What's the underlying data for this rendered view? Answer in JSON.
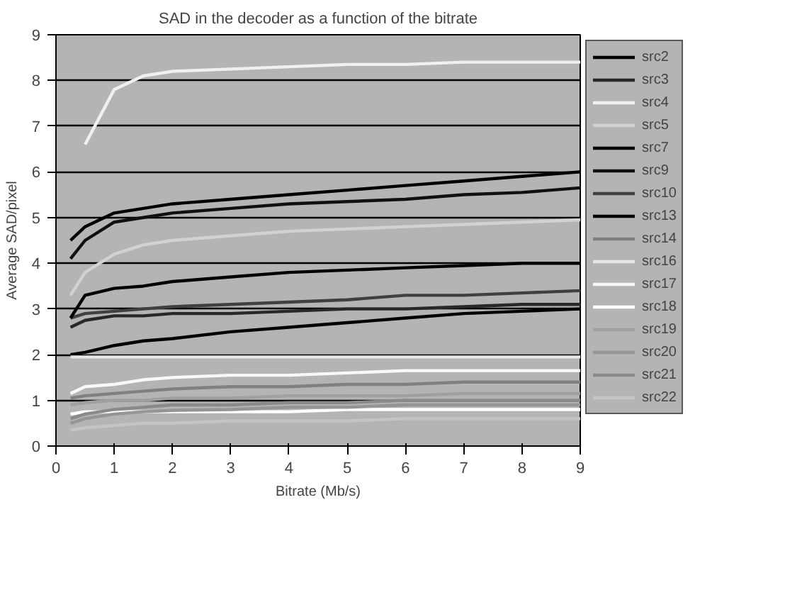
{
  "chart_data": {
    "type": "line",
    "title": "SAD in the decoder as a function of the bitrate",
    "xlabel": "Bitrate (Mb/s)",
    "ylabel": "Average SAD/pixel",
    "x": [
      0.25,
      0.5,
      1,
      1.5,
      2,
      3,
      4,
      5,
      6,
      7,
      8,
      9
    ],
    "xlim": [
      0,
      9
    ],
    "ylim": [
      0,
      9
    ],
    "xticks": [
      0,
      1,
      2,
      3,
      4,
      5,
      6,
      7,
      8,
      9
    ],
    "yticks": [
      0,
      1,
      2,
      3,
      4,
      5,
      6,
      7,
      8,
      9
    ],
    "grid": "y",
    "legend": "right",
    "series": [
      {
        "name": "src2",
        "color": "#000000",
        "values": [
          4.5,
          4.8,
          5.1,
          5.2,
          5.3,
          5.4,
          5.5,
          5.6,
          5.7,
          5.8,
          5.9,
          6.0
        ]
      },
      {
        "name": "src3",
        "color": "#282828",
        "values": [
          2.6,
          2.75,
          2.85,
          2.85,
          2.9,
          2.9,
          2.95,
          3.0,
          3.0,
          3.05,
          3.1,
          3.1
        ]
      },
      {
        "name": "src4",
        "color": "#f0f0f0",
        "values": [
          null,
          6.6,
          7.8,
          8.1,
          8.2,
          8.25,
          8.3,
          8.35,
          8.35,
          8.4,
          8.4,
          8.4
        ]
      },
      {
        "name": "src5",
        "color": "#d2d2d2",
        "values": [
          3.3,
          3.8,
          4.2,
          4.4,
          4.5,
          4.6,
          4.7,
          4.75,
          4.8,
          4.85,
          4.9,
          4.95
        ]
      },
      {
        "name": "src7",
        "color": "#000000",
        "values": [
          2.0,
          2.05,
          2.2,
          2.3,
          2.35,
          2.5,
          2.6,
          2.7,
          2.8,
          2.9,
          2.95,
          3.0
        ]
      },
      {
        "name": "src9",
        "color": "#101010",
        "values": [
          4.1,
          4.5,
          4.9,
          5.0,
          5.1,
          5.2,
          5.3,
          5.35,
          5.4,
          5.5,
          5.55,
          5.65
        ]
      },
      {
        "name": "src10",
        "color": "#404040",
        "values": [
          2.8,
          2.9,
          2.95,
          3.0,
          3.05,
          3.1,
          3.15,
          3.2,
          3.3,
          3.3,
          3.35,
          3.4
        ]
      },
      {
        "name": "src13",
        "color": "#000000",
        "values": [
          2.8,
          3.3,
          3.45,
          3.5,
          3.6,
          3.7,
          3.8,
          3.85,
          3.9,
          3.95,
          4.0,
          4.0
        ]
      },
      {
        "name": "src14",
        "color": "#808080",
        "values": [
          1.05,
          1.1,
          1.15,
          1.2,
          1.25,
          1.3,
          1.3,
          1.35,
          1.35,
          1.4,
          1.4,
          1.4
        ]
      },
      {
        "name": "src16",
        "color": "#e6e6e6",
        "values": [
          1.95,
          1.95,
          1.95,
          1.95,
          1.95,
          1.95,
          1.95,
          1.95,
          1.95,
          1.95,
          1.95,
          1.95
        ]
      },
      {
        "name": "src17",
        "color": "#f8f8f8",
        "values": [
          1.15,
          1.3,
          1.35,
          1.45,
          1.5,
          1.55,
          1.55,
          1.6,
          1.65,
          1.65,
          1.65,
          1.65
        ]
      },
      {
        "name": "src18",
        "color": "#ffffff",
        "values": [
          0.7,
          0.75,
          0.75,
          0.75,
          0.75,
          0.75,
          0.75,
          0.8,
          0.8,
          0.8,
          0.8,
          0.8
        ]
      },
      {
        "name": "src19",
        "color": "#a0a0a0",
        "values": [
          0.9,
          0.95,
          1.0,
          1.0,
          1.05,
          1.05,
          1.1,
          1.1,
          1.1,
          1.15,
          1.15,
          1.15
        ]
      },
      {
        "name": "src20",
        "color": "#959595",
        "values": [
          0.5,
          0.6,
          0.7,
          0.75,
          0.78,
          0.8,
          0.85,
          0.85,
          0.9,
          0.9,
          0.9,
          0.9
        ]
      },
      {
        "name": "src21",
        "color": "#8a8a8a",
        "values": [
          0.6,
          0.7,
          0.8,
          0.85,
          0.9,
          0.9,
          0.95,
          0.95,
          1.0,
          1.0,
          1.0,
          1.0
        ]
      },
      {
        "name": "src22",
        "color": "#c4c4c4",
        "values": [
          0.35,
          0.4,
          0.45,
          0.5,
          0.5,
          0.55,
          0.55,
          0.55,
          0.6,
          0.6,
          0.6,
          0.6
        ]
      }
    ]
  }
}
